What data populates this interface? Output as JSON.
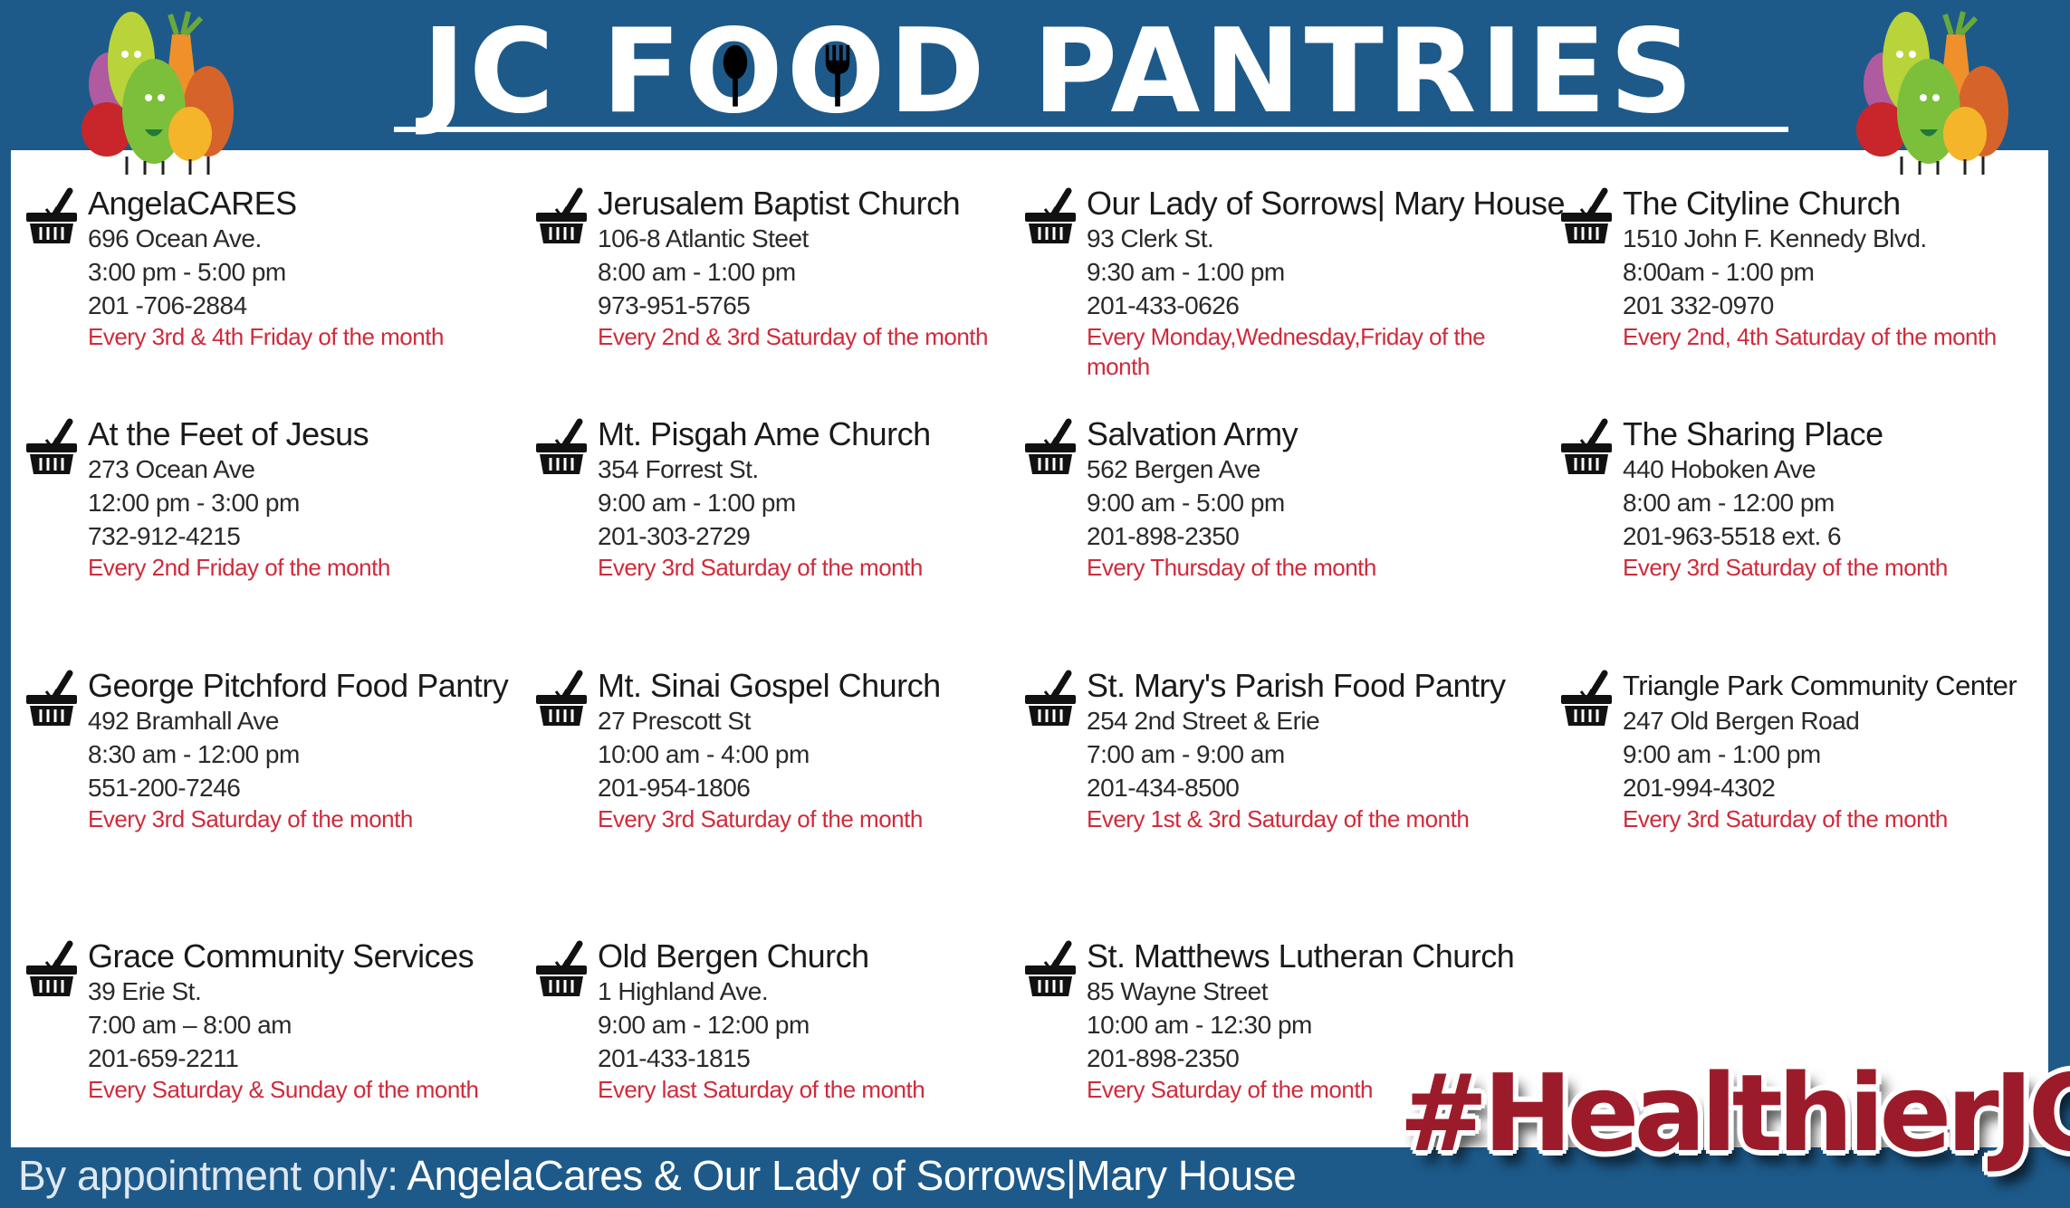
{
  "header": {
    "title_parts": [
      "JC F",
      "D PANTRIES"
    ],
    "title_full": "JC FOOD PANTRIES",
    "icons": [
      "spoon-icon",
      "fork-icon",
      "vegetable-characters-illustration"
    ]
  },
  "colors": {
    "brand_blue": "#1d5a8a",
    "schedule_red": "#d02a3a",
    "hashtag_red": "#9c1b2a"
  },
  "pantries": [
    {
      "name": "AngelaCARES",
      "address": "696 Ocean Ave.",
      "hours": "3:00 pm - 5:00 pm",
      "phone": "201 -706-2884",
      "schedule": "Every 3rd & 4th Friday of the month"
    },
    {
      "name": "Jerusalem Baptist Church",
      "address": "106-8 Atlantic Steet",
      "hours": "8:00 am - 1:00 pm",
      "phone": "973-951-5765",
      "schedule": "Every 2nd & 3rd Saturday of the month"
    },
    {
      "name": "Our Lady of Sorrows| Mary House",
      "address": "93 Clerk St.",
      "hours": "9:30 am  - 1:00 pm",
      "phone": "201-433-0626",
      "schedule": "Every Monday,Wednesday,Friday of the month"
    },
    {
      "name": "The Cityline Church",
      "address": "1510 John F. Kennedy Blvd.",
      "hours": "8:00am - 1:00 pm",
      "phone": "201 332-0970",
      "schedule": "Every 2nd, 4th Saturday of the month"
    },
    {
      "name": "At the Feet of Jesus",
      "address": "273 Ocean Ave",
      "hours": "12:00 pm - 3:00 pm",
      "phone": "732-912-4215",
      "schedule": "Every 2nd Friday of the month"
    },
    {
      "name": "Mt. Pisgah Ame Church",
      "address": "354 Forrest St.",
      "hours": "9:00 am  - 1:00 pm",
      "phone": "201-303-2729",
      "schedule": "Every 3rd Saturday of the month"
    },
    {
      "name": "Salvation Army",
      "address": "562 Bergen Ave",
      "hours": "9:00 am - 5:00 pm",
      "phone": "201-898-2350",
      "schedule": "Every Thursday of the month"
    },
    {
      "name": "The Sharing Place",
      "address": "440 Hoboken Ave",
      "hours": "8:00 am - 12:00 pm",
      "phone": "201-963-5518 ext. 6",
      "schedule": "Every 3rd Saturday of the month"
    },
    {
      "name": "George Pitchford Food Pantry",
      "address": "492 Bramhall Ave",
      "hours": "8:30 am - 12:00 pm",
      "phone": "551-200-7246",
      "schedule": "Every 3rd Saturday of the month"
    },
    {
      "name": "Mt. Sinai Gospel Church",
      "address": "27 Prescott St",
      "hours": "10:00 am - 4:00 pm",
      "phone": "201-954-1806",
      "schedule": "Every 3rd Saturday of the month"
    },
    {
      "name": "St. Mary's Parish Food Pantry",
      "address": "254 2nd Street & Erie",
      "hours": "7:00 am - 9:00 am",
      "phone": "201-434-8500",
      "schedule": "Every 1st & 3rd Saturday of the month"
    },
    {
      "name": "Triangle Park Community Center",
      "address": "247 Old Bergen Road",
      "hours": "9:00 am - 1:00 pm",
      "phone": "201-994-4302",
      "schedule": "Every 3rd Saturday of the month"
    },
    {
      "name": "Grace Community Services",
      "address": "39 Erie St.",
      "hours": "7:00 am – 8:00 am",
      "phone": "201-659-2211",
      "schedule": "Every Saturday & Sunday of the month"
    },
    {
      "name": "Old Bergen Church",
      "address": "1 Highland Ave.",
      "hours": "9:00 am  - 12:00 pm",
      "phone": "201-433-1815",
      "schedule": "Every last Saturday of the month"
    },
    {
      "name": "St. Matthews Lutheran Church",
      "address": "85 Wayne Street",
      "hours": "10:00 am - 12:30 pm",
      "phone": "201-898-2350",
      "schedule": "Every Saturday of the month"
    }
  ],
  "footer": {
    "lead": "By appointment only: ",
    "names": "AngelaCares & Our Lady of Sorrows|Mary House"
  },
  "hashtag": "#HealthierJC"
}
